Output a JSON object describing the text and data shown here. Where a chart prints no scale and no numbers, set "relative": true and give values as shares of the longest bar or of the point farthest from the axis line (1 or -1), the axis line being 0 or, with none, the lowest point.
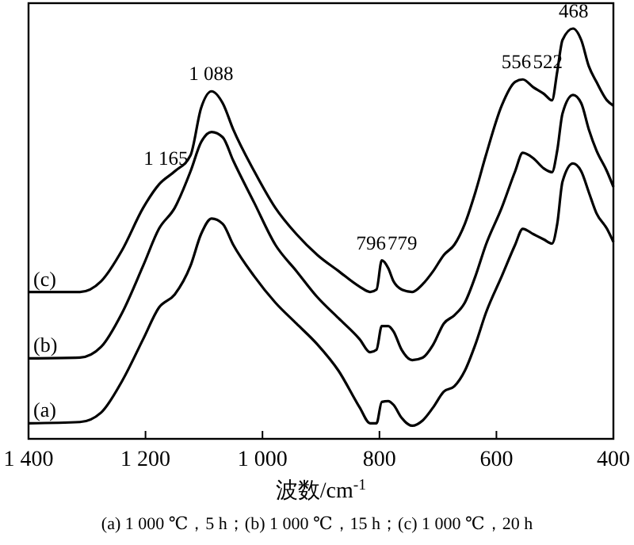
{
  "chart_data": {
    "type": "line",
    "relative": true,
    "xlabel": "波数/cm$^{-1}$",
    "xlim": [
      1400,
      400
    ],
    "xticks": [
      {
        "value": 1400,
        "label": "1 400"
      },
      {
        "value": 1200,
        "label": "1 200"
      },
      {
        "value": 1000,
        "label": "1 000"
      },
      800,
      600,
      400
    ],
    "tick_labels": "x",
    "grid": false,
    "marker": "none",
    "line_style": "solid",
    "x": [
      1400,
      1312,
      1276,
      1240,
      1204,
      1177,
      1150,
      1123,
      1105,
      1087,
      1068,
      1050,
      1014,
      978,
      942,
      906,
      870,
      834,
      816,
      805,
      796,
      785,
      776,
      762,
      744,
      726,
      708,
      690,
      672,
      654,
      636,
      618,
      591,
      568,
      555,
      537,
      519,
      505,
      496,
      487,
      469,
      455,
      442,
      429,
      411,
      400
    ],
    "series": [
      {
        "name": "(a)",
        "color": "#000000",
        "values": [
          0.038,
          0.041,
          0.064,
          0.141,
          0.243,
          0.32,
          0.352,
          0.422,
          0.499,
          0.537,
          0.524,
          0.473,
          0.396,
          0.332,
          0.281,
          0.23,
          0.166,
          0.077,
          0.038,
          0.038,
          0.09,
          0.092,
          0.083,
          0.051,
          0.032,
          0.045,
          0.077,
          0.115,
          0.128,
          0.166,
          0.23,
          0.307,
          0.396,
          0.473,
          0.512,
          0.499,
          0.486,
          0.476,
          0.524,
          0.627,
          0.671,
          0.652,
          0.601,
          0.55,
          0.512,
          0.48
        ]
      },
      {
        "name": "(b)",
        "color": "#000000",
        "values": [
          0.196,
          0.198,
          0.224,
          0.307,
          0.422,
          0.512,
          0.563,
          0.652,
          0.723,
          0.748,
          0.735,
          0.678,
          0.575,
          0.473,
          0.409,
          0.345,
          0.294,
          0.243,
          0.211,
          0.217,
          0.275,
          0.275,
          0.262,
          0.217,
          0.192,
          0.198,
          0.23,
          0.281,
          0.301,
          0.332,
          0.396,
          0.473,
          0.563,
          0.652,
          0.697,
          0.684,
          0.659,
          0.65,
          0.703,
          0.793,
          0.838,
          0.818,
          0.754,
          0.703,
          0.652,
          0.614
        ]
      },
      {
        "name": "(c)",
        "color": "#000000",
        "values": [
          0.358,
          0.358,
          0.384,
          0.46,
          0.563,
          0.62,
          0.652,
          0.691,
          0.806,
          0.847,
          0.818,
          0.754,
          0.652,
          0.563,
          0.499,
          0.448,
          0.409,
          0.371,
          0.358,
          0.364,
          0.435,
          0.416,
          0.384,
          0.364,
          0.358,
          0.377,
          0.409,
          0.448,
          0.473,
          0.524,
          0.601,
          0.691,
          0.812,
          0.87,
          0.876,
          0.857,
          0.841,
          0.825,
          0.895,
          0.972,
          1,
          0.972,
          0.908,
          0.87,
          0.825,
          0.812
        ]
      }
    ],
    "annotations": [
      {
        "text": "1 165",
        "x": 1165,
        "y": 0.64
      },
      {
        "text": "1 088",
        "x": 1088,
        "y": 0.847
      },
      {
        "text": "796",
        "x": 796,
        "y": 0.435
      },
      {
        "text": "779",
        "x": 779,
        "y": 0.42
      },
      {
        "text": "556",
        "x": 556,
        "y": 0.876
      },
      {
        "text": "522",
        "x": 522,
        "y": 0.841
      },
      {
        "text": "468",
        "x": 468,
        "y": 1
      },
      "(a) 1 000 ℃，5 h；(b) 1 000 ℃，15 h；(c) 1 000 ℃，20 h"
    ]
  }
}
